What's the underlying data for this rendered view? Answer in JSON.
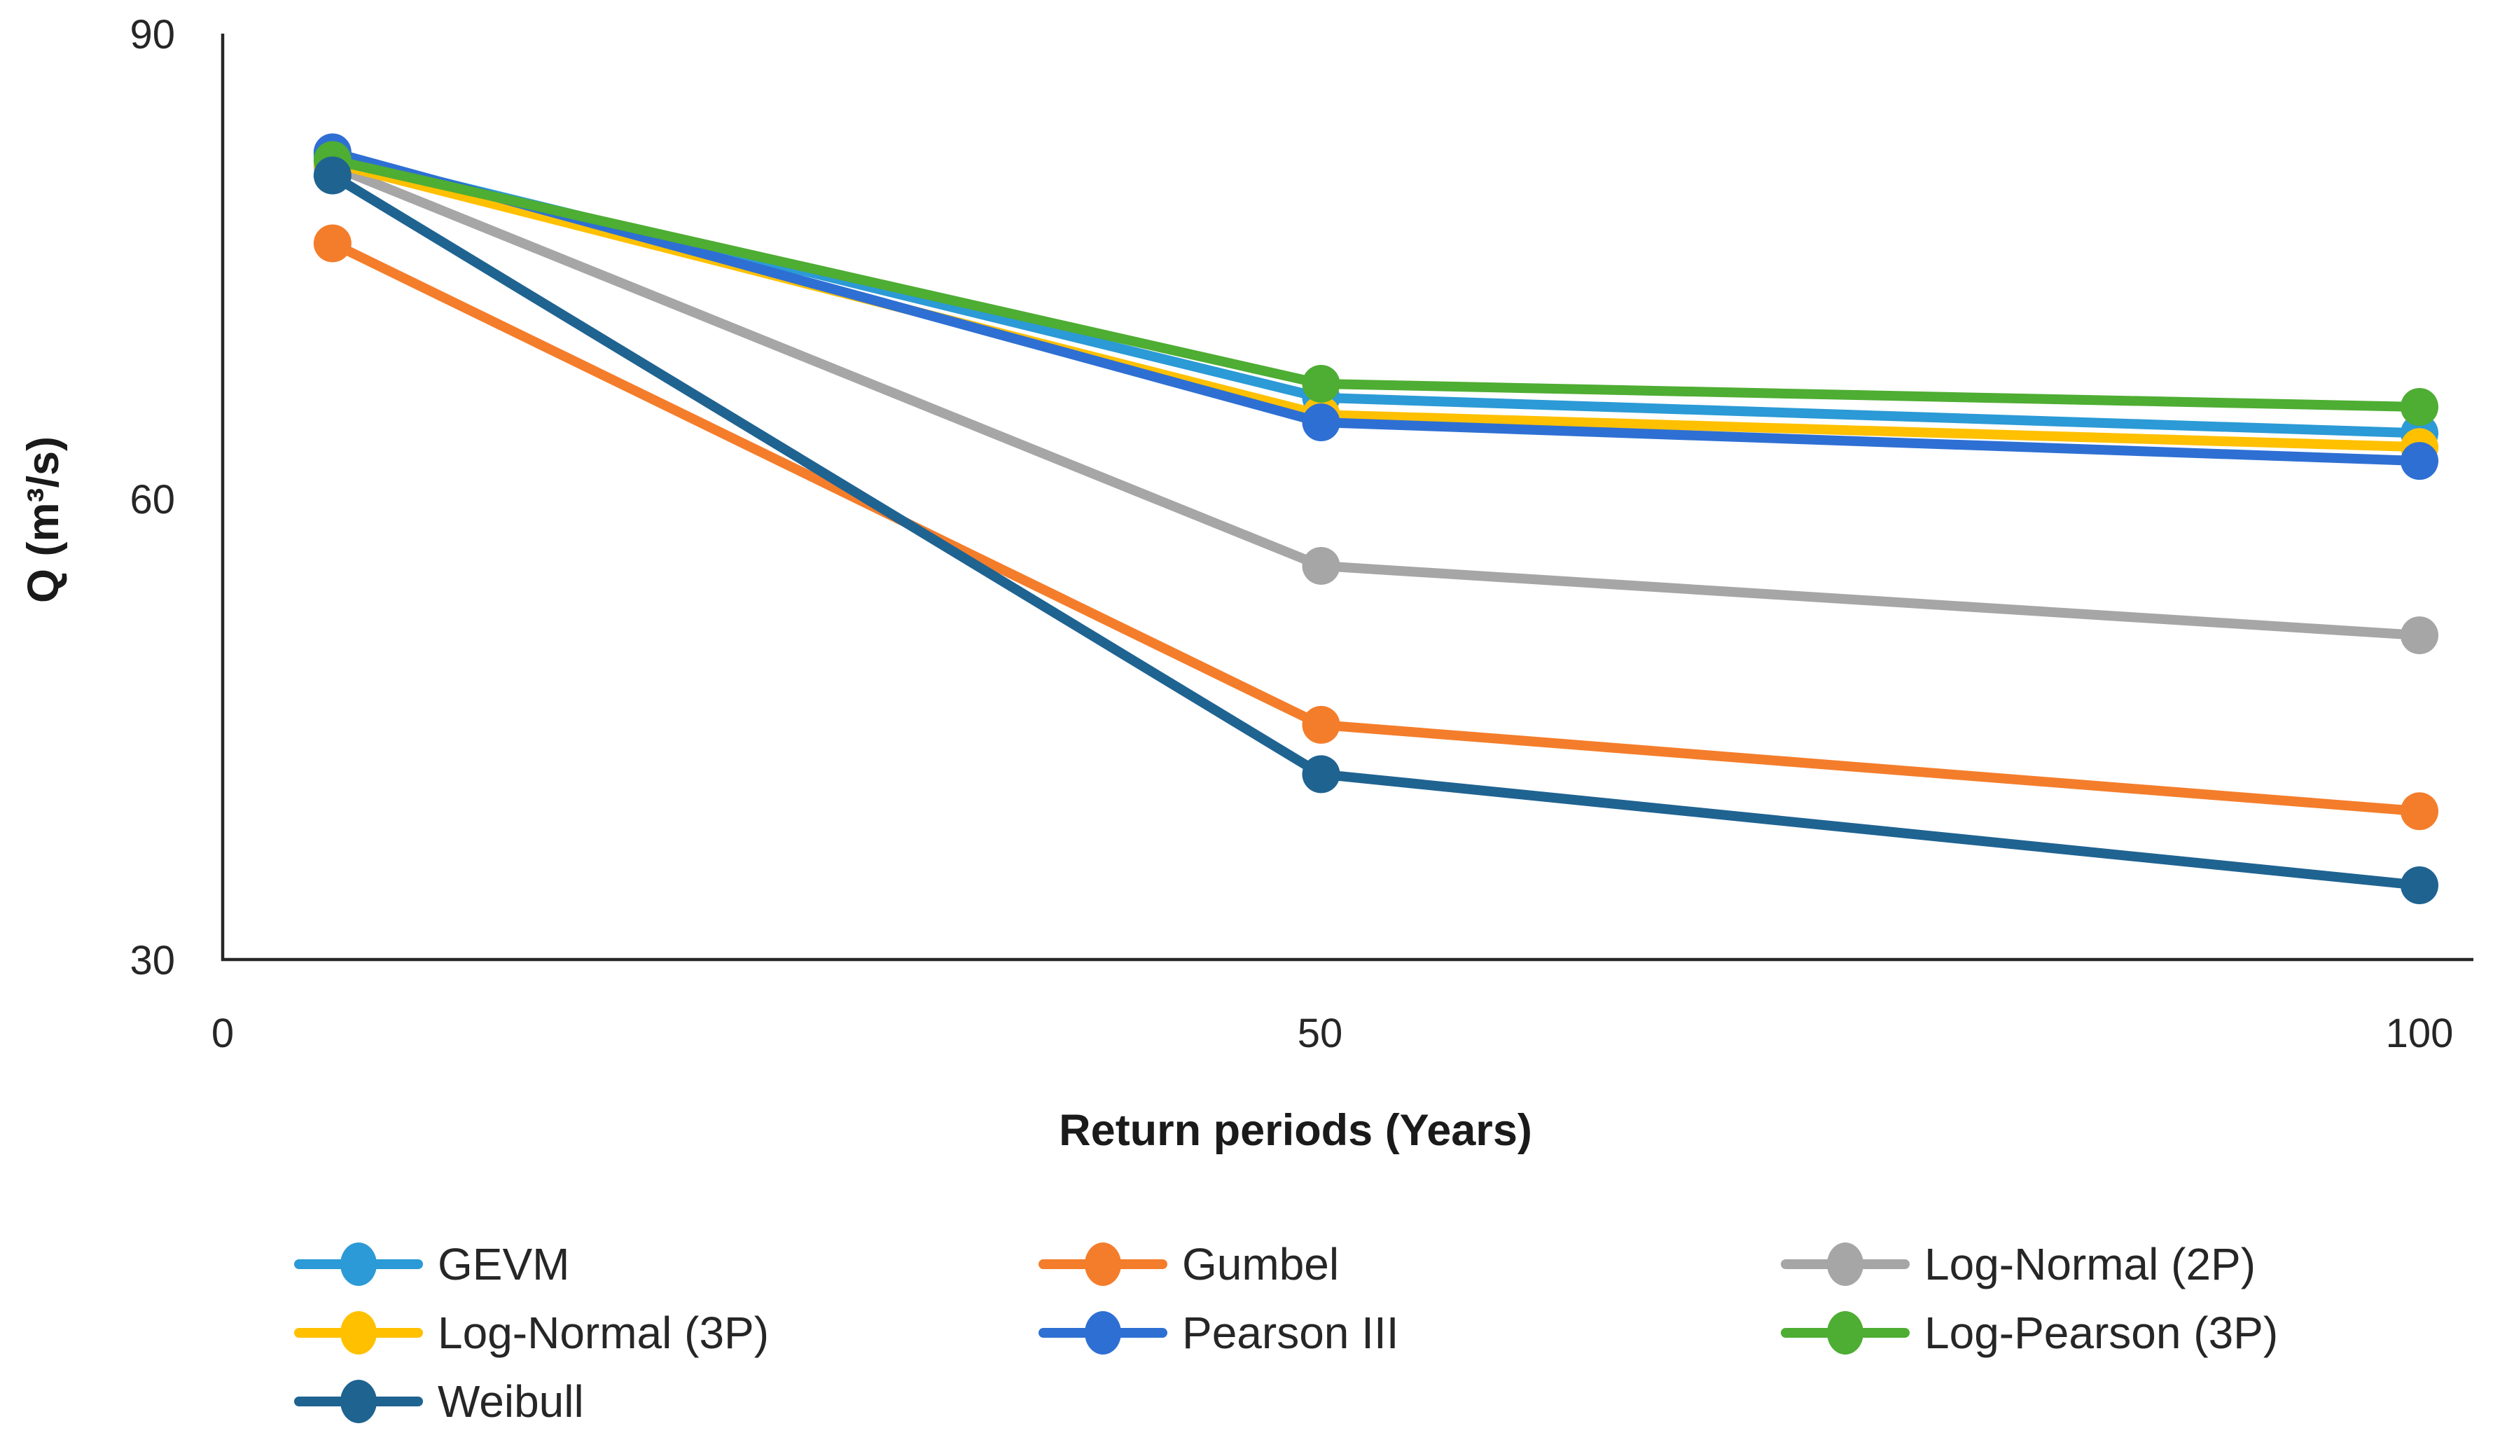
{
  "figure": {
    "y_axis_title": "Q (m³/s)",
    "x_axis_title": "Return periods (Years)",
    "y_tick_labels": [
      "90",
      "60",
      "30"
    ],
    "x_tick_labels": [
      "0",
      "50",
      "100"
    ]
  },
  "chart_data": {
    "type": "line",
    "title": "",
    "xlabel": "Return periods (Years)",
    "ylabel": "Q (m³/s)",
    "x": [
      5,
      50,
      100
    ],
    "xlim": [
      0,
      100
    ],
    "ylim": [
      30,
      90
    ],
    "x_ticks": [
      0,
      50,
      100
    ],
    "y_ticks": [
      30,
      60,
      90
    ],
    "grid": false,
    "legend_position": "bottom",
    "marker": "circle",
    "series": [
      {
        "name": "GEVM",
        "color": "#2B9AD6",
        "values": [
          82.2,
          66.5,
          64.2
        ]
      },
      {
        "name": "Gumbel",
        "color": "#F47D2B",
        "values": [
          76.5,
          45.3,
          39.7
        ]
      },
      {
        "name": "Log-Normal (2P)",
        "color": "#A6A6A6",
        "values": [
          81.5,
          55.6,
          51.1
        ]
      },
      {
        "name": "Log-Normal (3P)",
        "color": "#FFC000",
        "values": [
          81.7,
          65.4,
          63.3
        ]
      },
      {
        "name": "Pearson III",
        "color": "#2E6FD3",
        "values": [
          82.4,
          64.9,
          62.4
        ]
      },
      {
        "name": "Log-Pearson (3P)",
        "color": "#4EAD33",
        "values": [
          81.9,
          67.4,
          65.9
        ]
      },
      {
        "name": "Weibull",
        "color": "#1F6391",
        "values": [
          80.9,
          42.1,
          34.9
        ]
      }
    ]
  }
}
